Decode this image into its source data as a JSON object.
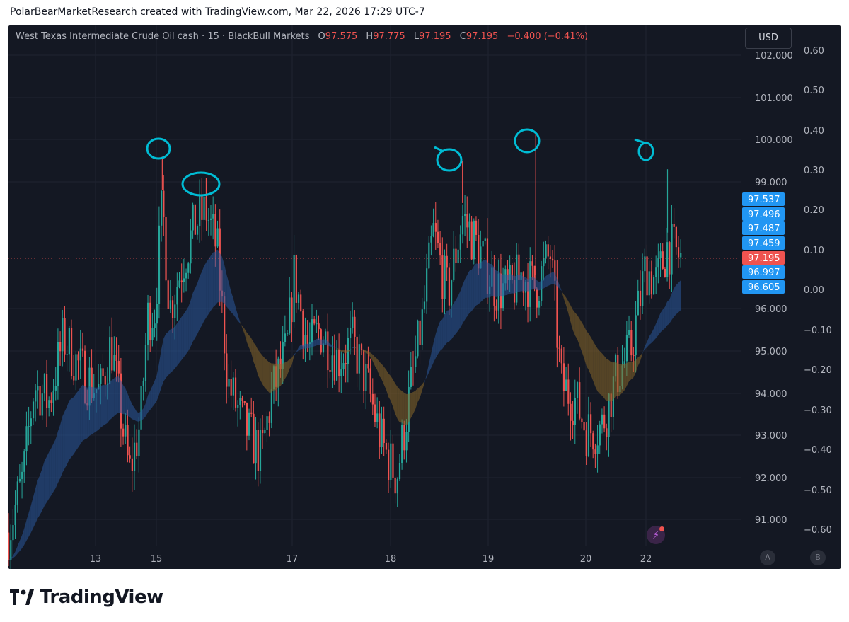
{
  "header": {
    "caption": "PolarBearMarketResearch created with TradingView.com, Mar 22, 2026 17:29 UTC-7"
  },
  "legend": {
    "symbol": "West Texas Intermediate Crude Oil cash · 15 · BlackBull Markets",
    "o_label": "O",
    "o_value": "97.575",
    "h_label": "H",
    "h_value": "97.775",
    "l_label": "L",
    "l_value": "97.195",
    "c_label": "C",
    "c_value": "97.195",
    "change": "−0.400 (−0.41%)"
  },
  "currency_button": "USD",
  "axis_buttons": {
    "a": "A",
    "b": "B"
  },
  "brand": {
    "name": "TradingView"
  },
  "colors": {
    "background": "#141823",
    "up": "#26a69a",
    "down": "#ef5350",
    "annotation": "#00bcd4",
    "badge_blue": "#2196f3",
    "badge_red": "#ef5350"
  },
  "chart_data": {
    "type": "candlestick",
    "price_axis": {
      "ticks": [
        "102.000",
        "101.000",
        "100.000",
        "99.000",
        "96.000",
        "95.000",
        "94.000",
        "93.000",
        "92.000",
        "91.000"
      ],
      "range": [
        90.4,
        102.3
      ]
    },
    "percent_axis": {
      "ticks": [
        "0.60",
        "0.50",
        "0.40",
        "0.30",
        "0.20",
        "0.10",
        "0.00",
        "−0.10",
        "−0.20",
        "−0.30",
        "−0.40",
        "−0.50",
        "−0.60"
      ]
    },
    "time_axis": {
      "ticks": [
        "13",
        "15",
        "17",
        "18",
        "19",
        "20",
        "22"
      ]
    },
    "price_badges": [
      {
        "label": "97.537",
        "color": "blue"
      },
      {
        "label": "97.496",
        "color": "blue"
      },
      {
        "label": "97.487",
        "color": "blue"
      },
      {
        "label": "97.459",
        "color": "blue"
      },
      {
        "label": "97.195",
        "color": "red"
      },
      {
        "label": "96.997",
        "color": "blue"
      },
      {
        "label": "96.605",
        "color": "blue"
      }
    ],
    "last_price": 97.195,
    "price_path": [
      [
        0,
        90.7
      ],
      [
        0.02,
        92.0
      ],
      [
        0.035,
        94.2
      ],
      [
        0.055,
        93.8
      ],
      [
        0.075,
        95.3
      ],
      [
        0.1,
        94.5
      ],
      [
        0.125,
        94.0
      ],
      [
        0.14,
        95.2
      ],
      [
        0.155,
        93.3
      ],
      [
        0.165,
        92.1
      ],
      [
        0.18,
        93.3
      ],
      [
        0.19,
        95.8
      ],
      [
        0.2,
        96.0
      ],
      [
        0.21,
        98.5
      ],
      [
        0.22,
        96.0
      ],
      [
        0.24,
        97.2
      ],
      [
        0.255,
        98.0
      ],
      [
        0.27,
        98.3
      ],
      [
        0.285,
        97.4
      ],
      [
        0.3,
        94.2
      ],
      [
        0.32,
        93.3
      ],
      [
        0.345,
        92.5
      ],
      [
        0.36,
        94.0
      ],
      [
        0.38,
        95.0
      ],
      [
        0.39,
        96.8
      ],
      [
        0.41,
        95.0
      ],
      [
        0.425,
        95.5
      ],
      [
        0.45,
        94.8
      ],
      [
        0.47,
        95.2
      ],
      [
        0.49,
        94.2
      ],
      [
        0.51,
        92.8
      ],
      [
        0.53,
        92.0
      ],
      [
        0.55,
        94.2
      ],
      [
        0.565,
        95.7
      ],
      [
        0.58,
        97.8
      ],
      [
        0.6,
        96.3
      ],
      [
        0.62,
        98.2
      ],
      [
        0.645,
        97.3
      ],
      [
        0.665,
        96.5
      ],
      [
        0.685,
        96.4
      ],
      [
        0.7,
        96.8
      ],
      [
        0.72,
        96.5
      ],
      [
        0.74,
        97.3
      ],
      [
        0.755,
        94.2
      ],
      [
        0.775,
        93.8
      ],
      [
        0.79,
        93.1
      ],
      [
        0.81,
        93.2
      ],
      [
        0.83,
        94.4
      ],
      [
        0.85,
        95.0
      ],
      [
        0.87,
        97.0
      ],
      [
        0.885,
        96.6
      ],
      [
        0.9,
        97.5
      ],
      [
        0.918,
        97.2
      ]
    ],
    "marked_peaks": [
      {
        "x": "15",
        "price": 99.6
      },
      {
        "x": "15",
        "price": 99.1
      },
      {
        "x": "18",
        "price": 99.5
      },
      {
        "x": "19",
        "price": 100.2
      },
      {
        "x": "22",
        "price": 99.3
      }
    ]
  }
}
